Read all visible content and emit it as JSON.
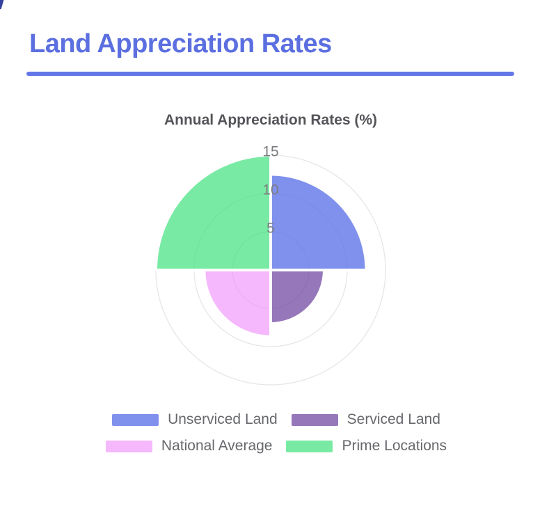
{
  "page": {
    "title": "Land Appreciation Rates",
    "accent_color": "#5c6fe0",
    "divider_color": "#6377e8",
    "corner_mark_color": "#36419f"
  },
  "chart_data": {
    "type": "polarArea",
    "title": "Annual Appreciation Rates (%)",
    "categories": [
      "Unserviced Land",
      "Serviced Land",
      "National Average",
      "Prime Locations"
    ],
    "values": [
      12.5,
      7,
      8.7,
      15
    ],
    "colors": [
      "rgba(92,114,232,0.78)",
      "rgba(109,66,160,0.72)",
      "rgba(240,146,252,0.65)",
      "rgba(69,226,129,0.72)"
    ],
    "rticks": [
      5,
      10,
      15
    ],
    "rmax": 15,
    "start_angle_deg": -90,
    "direction": "clockwise",
    "grid": true,
    "ring_color": "#e6e6e6",
    "tick_color": "#7c7d81",
    "segment_border_color": "#ffffff",
    "legend_position": "bottom"
  },
  "legend": {
    "items": [
      {
        "label": "Unserviced Land"
      },
      {
        "label": "Serviced Land"
      },
      {
        "label": "National Average"
      },
      {
        "label": "Prime Locations"
      }
    ]
  }
}
